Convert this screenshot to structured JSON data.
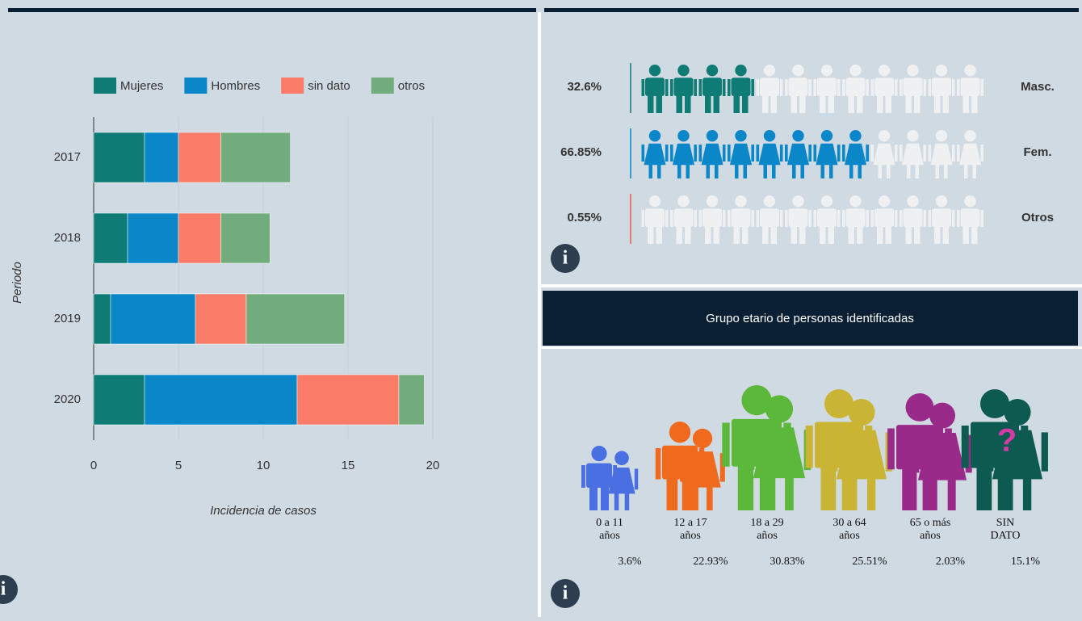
{
  "chart_data": {
    "type": "stacked-barh",
    "categories": [
      "2017",
      "2018",
      "2019",
      "2020"
    ],
    "series": [
      {
        "name": "Mujeres",
        "color": "#0e7b74",
        "values": [
          3,
          2,
          1,
          3
        ]
      },
      {
        "name": "Hombres",
        "color": "#0a87c9",
        "values": [
          2,
          3,
          5,
          9
        ]
      },
      {
        "name": "sin dato",
        "color": "#fa7b67",
        "values": [
          2.5,
          2.5,
          3,
          6
        ]
      },
      {
        "name": "otros",
        "color": "#72ac7c",
        "values": [
          4.1,
          2.9,
          5.8,
          1.5
        ]
      }
    ],
    "xlim": [
      0,
      20
    ],
    "xticks": [
      0,
      5,
      10,
      15,
      20
    ],
    "grid": true,
    "xlabel": "Incidencia de casos",
    "ylabel": "Periodo",
    "legend": "top"
  },
  "gender": {
    "rows": [
      {
        "value": 32.6,
        "value_label": "32.6%",
        "label": "Masc.",
        "color": "#0e7b74"
      },
      {
        "value": 66.85,
        "value_label": "66.85%",
        "label": "Fem.",
        "color": "#0a87c9"
      },
      {
        "value": 0.55,
        "value_label": "0.55%",
        "label": "Otros",
        "color": "#e0604f"
      }
    ]
  },
  "age": {
    "title": "Grupo etario de personas identificadas",
    "groups": [
      {
        "label": [
          "0 a 11",
          "años"
        ],
        "percent": "3.6%",
        "color": "#4a6fe3"
      },
      {
        "label": [
          "12 a 17",
          "años"
        ],
        "percent": "22.93%",
        "color": "#f06a1e"
      },
      {
        "label": [
          "18 a 29",
          "años"
        ],
        "percent": "30.83%",
        "color": "#5cb83a"
      },
      {
        "label": [
          "30 a 64",
          "años"
        ],
        "percent": "25.51%",
        "color": "#c9b433"
      },
      {
        "label": [
          "65 o más",
          "años"
        ],
        "percent": "2.03%",
        "color": "#9a2a8a"
      },
      {
        "label": [
          "SIN",
          "DATO"
        ],
        "percent": "15.1%",
        "color": "#0d5a50"
      }
    ]
  }
}
